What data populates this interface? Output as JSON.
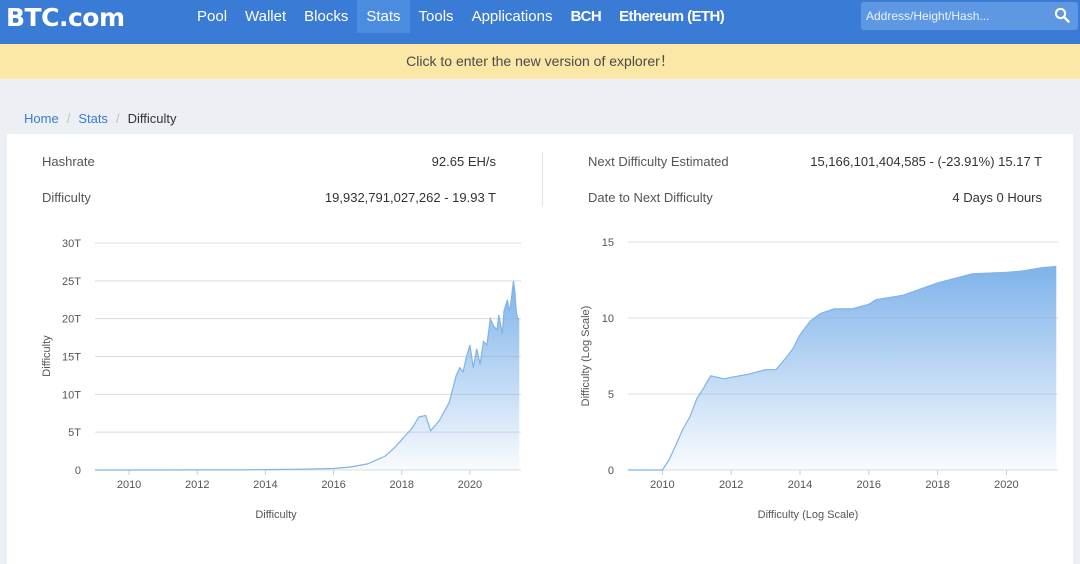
{
  "header": {
    "logo": "BTC.com",
    "nav": [
      {
        "label": "Pool",
        "active": false,
        "bold": false
      },
      {
        "label": "Wallet",
        "active": false,
        "bold": false
      },
      {
        "label": "Blocks",
        "active": false,
        "bold": false
      },
      {
        "label": "Stats",
        "active": true,
        "bold": false
      },
      {
        "label": "Tools",
        "active": false,
        "bold": false
      },
      {
        "label": "Applications",
        "active": false,
        "bold": false
      },
      {
        "label": "BCH",
        "active": false,
        "bold": true
      },
      {
        "label": "Ethereum (ETH)",
        "active": false,
        "bold": true
      }
    ],
    "search": {
      "placeholder": "Address/Height/Hash...",
      "value": "",
      "icon": "search-icon"
    }
  },
  "banner": {
    "text": "Click to enter the new version of explorer！"
  },
  "breadcrumb": {
    "home": "Home",
    "stats": "Stats",
    "current": "Difficulty",
    "separator": "/"
  },
  "stats": {
    "hashrate_label": "Hashrate",
    "hashrate_value": "92.65 EH/s",
    "difficulty_label": "Difficulty",
    "difficulty_value": "19,932,791,027,262 - 19.93 T",
    "next_label": "Next Difficulty Estimated",
    "next_value": "15,166,101,404,585 - (-23.91%) 15.17 T",
    "date_label": "Date to Next Difficulty",
    "date_value": "4 Days 0 Hours"
  },
  "colors": {
    "accent": "#3a7bd5",
    "banner": "#fbe8a6",
    "fill_top": "#7fb3ea",
    "line": "#7fb3ea"
  },
  "chart_data": [
    {
      "type": "area",
      "xlabel": "Difficulty",
      "ylabel": "Difficulty",
      "xlim": [
        2009,
        2021.5
      ],
      "ylim": [
        0,
        30
      ],
      "x_ticks": [
        "2010",
        "2012",
        "2014",
        "2016",
        "2018",
        "2020"
      ],
      "y_ticks": [
        "0",
        "5T",
        "10T",
        "15T",
        "20T",
        "25T",
        "30T"
      ],
      "grid": true,
      "series": [
        {
          "x": [
            2009.0,
            2013.0,
            2014.0,
            2015.0,
            2016.0,
            2016.5,
            2017.0,
            2017.5,
            2017.8,
            2018.0,
            2018.3,
            2018.5,
            2018.7,
            2018.85,
            2019.0,
            2019.1,
            2019.4,
            2019.6,
            2019.7,
            2019.8,
            2019.9,
            2020.0,
            2020.1,
            2020.2,
            2020.3,
            2020.4,
            2020.5,
            2020.6,
            2020.7,
            2020.8,
            2020.85,
            2020.95,
            2021.0,
            2021.1,
            2021.15,
            2021.2,
            2021.28,
            2021.32,
            2021.36,
            2021.4,
            2021.45
          ],
          "values": [
            0,
            0.01,
            0.05,
            0.1,
            0.2,
            0.4,
            0.8,
            1.8,
            3.0,
            4.0,
            5.5,
            7.0,
            7.2,
            5.2,
            6.0,
            6.5,
            9.0,
            12.5,
            13.5,
            13.0,
            15.0,
            16.5,
            13.5,
            16.0,
            14.0,
            17.0,
            16.5,
            20.0,
            19.0,
            18.5,
            20.5,
            18.0,
            21.0,
            22.5,
            21.0,
            22.0,
            25.0,
            23.5,
            21.0,
            20.0,
            20.0
          ]
        }
      ]
    },
    {
      "type": "area",
      "xlabel": "Difficulty (Log Scale)",
      "ylabel": "Difficulty (Log Scale)",
      "xlim": [
        2009,
        2021.5
      ],
      "ylim": [
        0,
        15
      ],
      "x_ticks": [
        "2010",
        "2012",
        "2014",
        "2016",
        "2018",
        "2020"
      ],
      "y_ticks": [
        "0",
        "5",
        "10",
        "15"
      ],
      "grid": true,
      "series": [
        {
          "x": [
            2009.0,
            2010.0,
            2010.2,
            2010.4,
            2010.6,
            2010.8,
            2011.0,
            2011.2,
            2011.4,
            2011.6,
            2011.8,
            2012.0,
            2012.5,
            2013.0,
            2013.3,
            2013.6,
            2013.8,
            2014.0,
            2014.3,
            2014.6,
            2015.0,
            2015.5,
            2016.0,
            2016.2,
            2017.0,
            2018.0,
            2019.0,
            2020.0,
            2020.5,
            2021.0,
            2021.45
          ],
          "values": [
            0,
            0,
            0.7,
            1.7,
            2.7,
            3.5,
            4.7,
            5.4,
            6.2,
            6.1,
            6.0,
            6.1,
            6.3,
            6.6,
            6.6,
            7.4,
            8.0,
            8.9,
            9.8,
            10.3,
            10.6,
            10.6,
            10.9,
            11.2,
            11.5,
            12.3,
            12.9,
            13.0,
            13.1,
            13.3,
            13.4
          ]
        }
      ]
    }
  ]
}
